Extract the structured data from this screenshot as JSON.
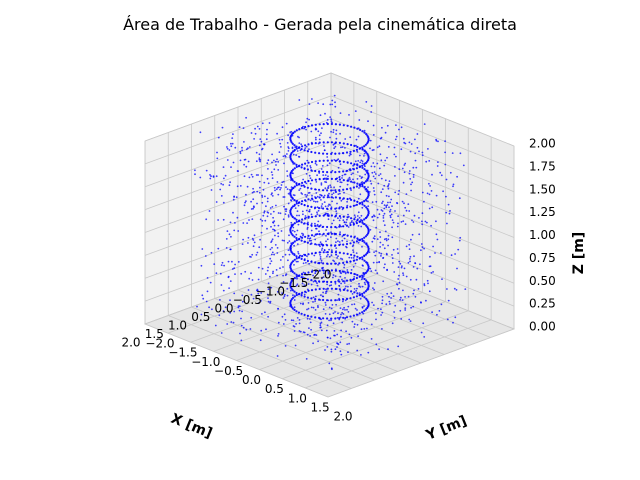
{
  "chart_data": {
    "type": "scatter",
    "title": "Área de Trabalho - Gerada pela cinemática direta",
    "xlabel": "X [m]",
    "ylabel": "Y [m]",
    "zlabel": "Z [m]",
    "xlim": [
      -2.0,
      2.0
    ],
    "ylim": [
      -2.0,
      2.0
    ],
    "zlim": [
      0.0,
      2.0
    ],
    "x_ticks": [
      "−2.0",
      "−1.5",
      "−1.0",
      "−0.5",
      "0.0",
      "0.5",
      "1.0",
      "1.5",
      "2.0"
    ],
    "y_ticks": [
      "−2.0",
      "−1.5",
      "−1.0",
      "−0.5",
      "0.0",
      "0.5",
      "1.0",
      "1.5",
      "2.0"
    ],
    "z_ticks": [
      "0.00",
      "0.25",
      "0.50",
      "0.75",
      "1.00",
      "1.25",
      "1.50",
      "1.75",
      "2.00"
    ],
    "grid": true,
    "point_color": "#0000ff",
    "series": [
      {
        "kind": "ring-layers",
        "radius": 0.6,
        "z_levels": [
          0.25,
          0.45,
          0.65,
          0.85,
          1.05,
          1.25,
          1.45,
          1.65,
          1.85,
          2.05
        ],
        "points_per_ring": 60
      },
      {
        "kind": "scattered-volume",
        "x_range": [
          -1.5,
          1.5
        ],
        "y_range": [
          -1.5,
          1.5
        ],
        "z_range": [
          0.0,
          2.1
        ],
        "count": 1600
      }
    ]
  }
}
